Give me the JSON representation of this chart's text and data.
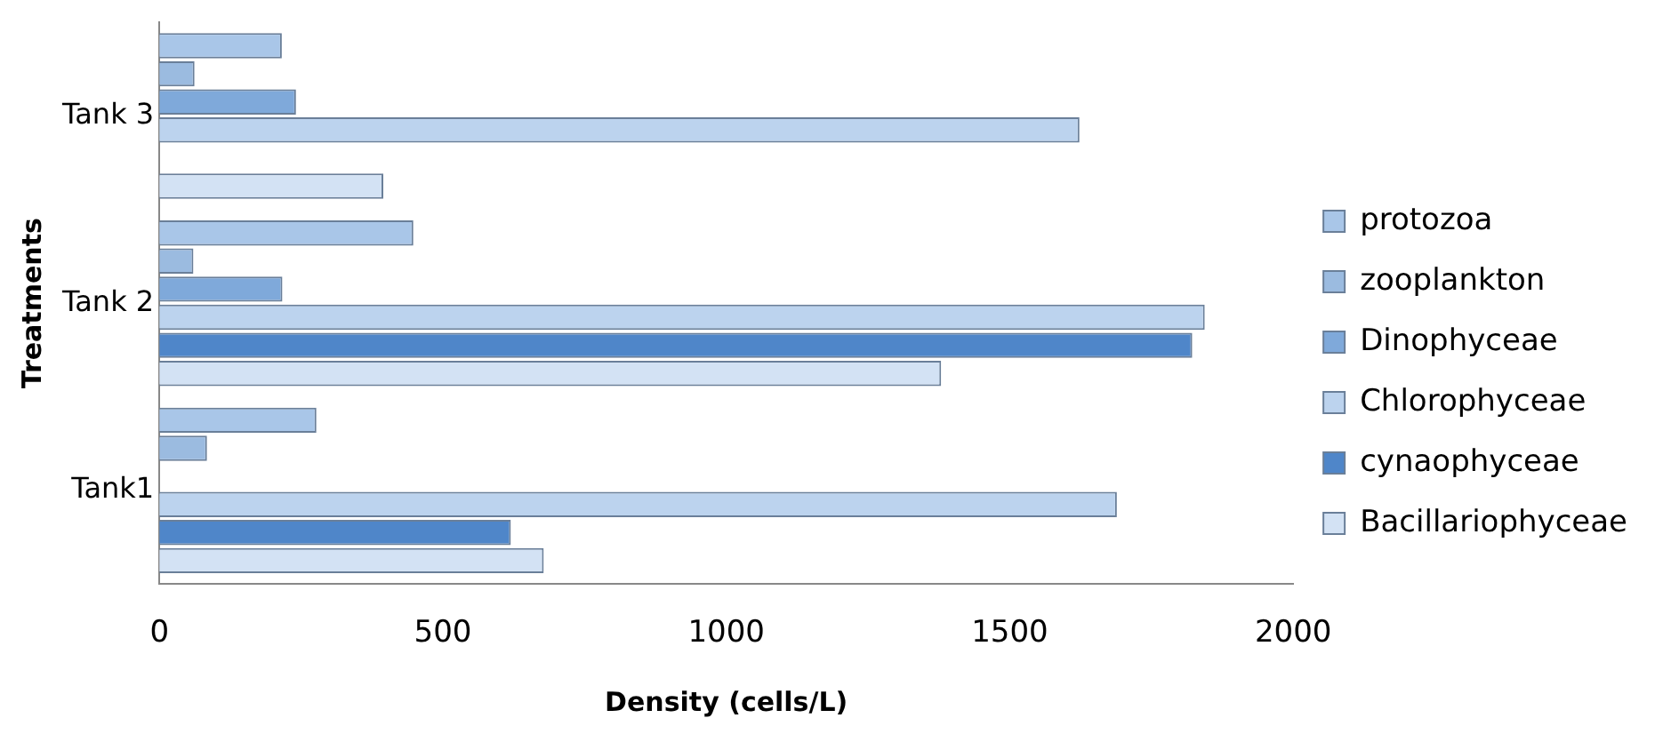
{
  "chart_data": {
    "type": "bar",
    "orientation": "horizontal",
    "xlabel": "Density (cells/L)",
    "ylabel": "Treatments",
    "categories": [
      "Tank 3",
      "Tank 2",
      "Tank1"
    ],
    "series": [
      {
        "name": "protozoa",
        "color": "#a9c6e8",
        "values": [
          216,
          448,
          277
        ]
      },
      {
        "name": "zooplankton",
        "color": "#9bbbe0",
        "values": [
          62,
          60,
          84
        ]
      },
      {
        "name": "Dinophyceae",
        "color": "#7fa9da",
        "values": [
          241,
          217,
          0
        ]
      },
      {
        "name": "Chlorophyceae",
        "color": "#bcd3ee",
        "values": [
          1623,
          1844,
          1689
        ]
      },
      {
        "name": "cynaophyceae",
        "color": "#4f86c9",
        "values": [
          0,
          1822,
          620
        ]
      },
      {
        "name": "Bacillariophyceae",
        "color": "#d3e2f4",
        "values": [
          395,
          1379,
          678
        ]
      }
    ],
    "xlim": [
      0,
      2000
    ],
    "xticks": [
      0,
      500,
      1000,
      1500,
      2000
    ],
    "grid": false,
    "legend": "right"
  }
}
